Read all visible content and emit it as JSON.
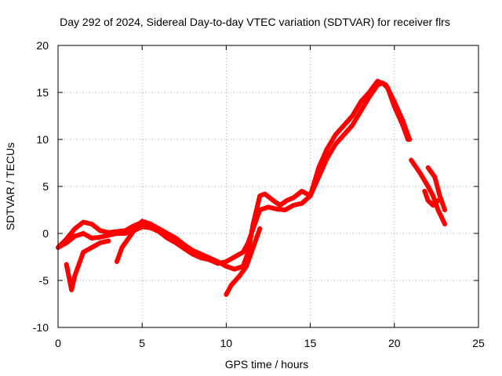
{
  "chart_data": {
    "type": "scatter",
    "title": "Day 292 of 2024, Sidereal Day-to-day VTEC variation (SDTVAR) for receiver flrs",
    "xlabel": "GPS time / hours",
    "ylabel": "SDTVAR / TECUs",
    "xlim": [
      0,
      25
    ],
    "ylim": [
      -10,
      20
    ],
    "xticks": [
      "0",
      "5",
      "10",
      "15",
      "20",
      "25"
    ],
    "yticks": [
      "-10",
      "-5",
      "0",
      "5",
      "10",
      "15",
      "20"
    ],
    "grid": true,
    "marker": "+",
    "colors": {
      "series": "#ff0000"
    },
    "series": [
      {
        "values": [
          [
            0.0,
            -1.5
          ],
          [
            0.5,
            -1.0
          ],
          [
            1.0,
            -0.3
          ],
          [
            1.5,
            0.0
          ],
          [
            2.0,
            -0.5
          ],
          [
            2.5,
            -0.4
          ],
          [
            3.0,
            -0.2
          ],
          [
            3.5,
            0.0
          ],
          [
            4.0,
            0.0
          ],
          [
            4.5,
            0.3
          ],
          [
            5.0,
            0.7
          ],
          [
            5.5,
            0.6
          ],
          [
            6.0,
            0.2
          ],
          [
            6.5,
            -0.5
          ],
          [
            7.0,
            -1.0
          ],
          [
            7.5,
            -1.6
          ],
          [
            8.0,
            -2.2
          ],
          [
            8.5,
            -2.6
          ],
          [
            9.0,
            -2.8
          ],
          [
            9.5,
            -3.2
          ],
          [
            10.0,
            -3.0
          ],
          [
            10.5,
            -2.5
          ],
          [
            11.0,
            -2.0
          ],
          [
            11.3,
            -1.0
          ],
          [
            11.6,
            0.5
          ],
          [
            12.0,
            2.5
          ],
          [
            12.5,
            2.8
          ],
          [
            13.0,
            2.6
          ],
          [
            13.5,
            2.5
          ],
          [
            14.0,
            3.0
          ],
          [
            14.5,
            3.2
          ],
          [
            15.0,
            4.0
          ],
          [
            15.5,
            6.0
          ],
          [
            16.0,
            8.0
          ],
          [
            16.5,
            9.5
          ],
          [
            17.0,
            10.5
          ],
          [
            17.5,
            11.5
          ],
          [
            18.0,
            13.0
          ],
          [
            18.5,
            14.5
          ],
          [
            19.0,
            15.8
          ],
          [
            19.3,
            16.0
          ],
          [
            19.6,
            15.5
          ],
          [
            20.0,
            13.5
          ],
          [
            20.5,
            11.5
          ],
          [
            20.8,
            10.0
          ]
        ]
      },
      {
        "values": [
          [
            0.0,
            -1.5
          ],
          [
            0.5,
            -0.6
          ],
          [
            1.0,
            0.5
          ],
          [
            1.5,
            1.2
          ],
          [
            2.0,
            1.0
          ],
          [
            2.5,
            0.3
          ],
          [
            3.0,
            0.1
          ],
          [
            3.5,
            0.2
          ],
          [
            4.0,
            0.3
          ],
          [
            4.5,
            0.8
          ],
          [
            5.0,
            1.2
          ],
          [
            5.5,
            0.9
          ],
          [
            6.0,
            0.5
          ],
          [
            6.5,
            0.0
          ],
          [
            7.0,
            -0.5
          ],
          [
            7.5,
            -1.2
          ],
          [
            8.0,
            -1.8
          ],
          [
            8.5,
            -2.2
          ],
          [
            9.0,
            -2.6
          ],
          [
            9.5,
            -3.0
          ],
          [
            10.0,
            -3.5
          ],
          [
            10.5,
            -3.8
          ],
          [
            11.0,
            -3.5
          ],
          [
            11.3,
            -2.0
          ],
          [
            11.6,
            1.0
          ],
          [
            12.0,
            4.0
          ],
          [
            12.3,
            4.2
          ],
          [
            12.8,
            3.5
          ],
          [
            13.2,
            3.0
          ],
          [
            13.6,
            3.5
          ],
          [
            14.0,
            3.8
          ],
          [
            14.5,
            4.5
          ],
          [
            15.0,
            4.0
          ],
          [
            15.5,
            7.0
          ],
          [
            16.0,
            9.0
          ],
          [
            16.5,
            10.5
          ],
          [
            17.0,
            11.5
          ],
          [
            17.5,
            12.5
          ],
          [
            18.0,
            14.0
          ],
          [
            18.5,
            15.0
          ],
          [
            19.0,
            16.2
          ],
          [
            19.5,
            15.8
          ],
          [
            20.0,
            14.0
          ],
          [
            20.5,
            12.0
          ],
          [
            20.9,
            10.0
          ]
        ]
      },
      {
        "values": [
          [
            0.5,
            -3.3
          ],
          [
            0.8,
            -6.0
          ],
          [
            1.0,
            -4.5
          ],
          [
            1.3,
            -3.0
          ],
          [
            1.5,
            -2.0
          ],
          [
            2.0,
            -1.5
          ],
          [
            2.5,
            -1.0
          ],
          [
            3.0,
            -0.8
          ]
        ]
      },
      {
        "values": [
          [
            3.5,
            -3.0
          ],
          [
            3.8,
            -1.5
          ],
          [
            4.2,
            -0.5
          ],
          [
            4.6,
            0.5
          ],
          [
            5.0,
            1.3
          ],
          [
            5.5,
            1.0
          ],
          [
            6.0,
            0.5
          ]
        ]
      },
      {
        "values": [
          [
            10.0,
            -6.5
          ],
          [
            10.3,
            -5.5
          ],
          [
            10.8,
            -4.5
          ],
          [
            11.2,
            -3.5
          ],
          [
            11.5,
            -2.0
          ],
          [
            11.8,
            -0.5
          ],
          [
            12.0,
            0.5
          ]
        ]
      },
      {
        "values": [
          [
            21.0,
            7.8
          ],
          [
            21.5,
            6.5
          ],
          [
            22.0,
            5.0
          ],
          [
            22.3,
            4.0
          ],
          [
            22.6,
            2.5
          ],
          [
            23.0,
            1.0
          ]
        ]
      },
      {
        "values": [
          [
            21.8,
            4.5
          ],
          [
            22.0,
            3.5
          ],
          [
            22.3,
            3.0
          ],
          [
            22.6,
            3.5
          ]
        ]
      },
      {
        "values": [
          [
            22.0,
            7.0
          ],
          [
            22.4,
            6.0
          ],
          [
            22.7,
            4.0
          ],
          [
            23.0,
            2.5
          ]
        ]
      }
    ]
  }
}
